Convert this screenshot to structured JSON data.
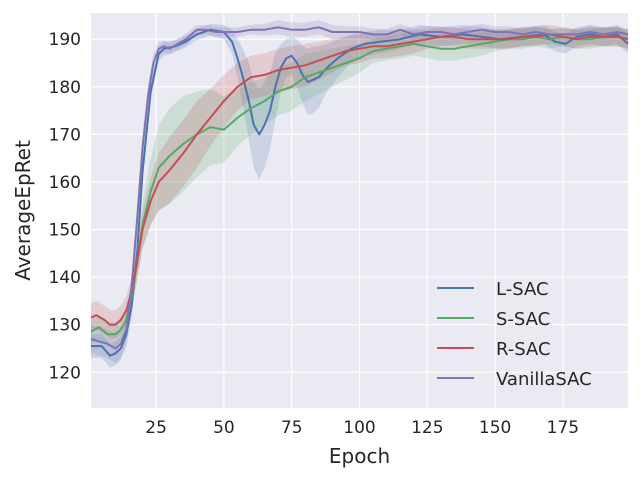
{
  "chart_data": {
    "type": "line",
    "title": "",
    "xlabel": "Epoch",
    "ylabel": "AverageEpRet",
    "xlim": [
      1,
      199
    ],
    "ylim": [
      112.5,
      195.5
    ],
    "xticks": [
      25,
      50,
      75,
      100,
      125,
      150,
      175
    ],
    "yticks": [
      120,
      130,
      140,
      150,
      160,
      170,
      180,
      190
    ],
    "grid": true,
    "legend_position": "lower-right",
    "background": "#eaeaf2",
    "series": [
      {
        "name": "L-SAC",
        "color": "#4c72b0",
        "x": [
          1,
          5,
          8,
          10,
          12,
          14,
          16,
          18,
          20,
          23,
          26,
          28,
          32,
          36,
          40,
          45,
          50,
          53,
          55,
          57,
          59,
          61,
          63,
          65,
          67,
          69,
          71,
          73,
          75,
          77,
          79,
          81,
          83,
          85,
          88,
          92,
          97,
          102,
          108,
          115,
          122,
          130,
          138,
          145,
          152,
          160,
          168,
          172,
          176,
          180,
          185,
          190,
          195,
          199
        ],
        "y": [
          125.5,
          125.5,
          123.5,
          124,
          125,
          128,
          134,
          145,
          162,
          179,
          187,
          188,
          188.5,
          189.5,
          191,
          192,
          191.5,
          189.5,
          186,
          182,
          177.5,
          172,
          170,
          172,
          175,
          180,
          184,
          186,
          186.5,
          185,
          182.5,
          181,
          181.5,
          182,
          184,
          186,
          188,
          189,
          189.5,
          190,
          191,
          190.5,
          191,
          190.5,
          190,
          190.5,
          191,
          189.5,
          189,
          190.5,
          191,
          190.5,
          191,
          189
        ],
        "band": [
          2.5,
          2.5,
          2.5,
          2.5,
          2.5,
          2.5,
          2.5,
          2.5,
          2,
          1.5,
          1.5,
          1.5,
          1.2,
          1.2,
          1.2,
          1.2,
          1.5,
          2.5,
          4,
          6,
          8,
          9,
          9.5,
          9,
          8,
          7,
          5,
          4,
          4,
          5,
          6,
          7,
          7,
          6.5,
          5,
          4,
          3,
          2.5,
          2.5,
          2,
          2,
          2,
          2,
          2,
          2,
          2,
          2,
          2,
          2,
          2,
          2,
          2,
          2,
          2
        ]
      },
      {
        "name": "S-SAC",
        "color": "#55a868",
        "x": [
          1,
          4,
          7,
          10,
          12,
          14,
          16,
          18,
          20,
          23,
          26,
          30,
          35,
          40,
          45,
          50,
          55,
          60,
          65,
          70,
          75,
          80,
          85,
          90,
          95,
          100,
          105,
          110,
          115,
          120,
          125,
          130,
          135,
          140,
          145,
          150,
          155,
          160,
          165,
          170,
          175,
          180,
          185,
          190,
          195,
          199
        ],
        "y": [
          128.5,
          129.5,
          128,
          128,
          129,
          131,
          136,
          143,
          151,
          158,
          163,
          165.5,
          168,
          170,
          171.5,
          171,
          173.5,
          175.5,
          177,
          179,
          180,
          182,
          183,
          184,
          185,
          186,
          187.5,
          188,
          188.5,
          189,
          188.5,
          188,
          188,
          188.5,
          189,
          189.5,
          190,
          190,
          190.5,
          190,
          190.5,
          190,
          190,
          190.5,
          190.5,
          190
        ],
        "band": [
          2.5,
          2.5,
          2.5,
          2.5,
          2.5,
          2.5,
          3,
          4,
          5,
          7,
          9,
          10,
          10,
          9,
          8,
          7,
          6,
          5.5,
          5,
          5,
          5,
          5,
          4.5,
          4,
          3.5,
          3,
          2.5,
          2.5,
          2.5,
          2.5,
          2.5,
          2.5,
          2.5,
          2.5,
          2.5,
          2,
          2,
          2,
          2,
          2,
          2,
          2,
          2,
          2,
          2,
          2
        ]
      },
      {
        "name": "R-SAC",
        "color": "#c44e52",
        "x": [
          1,
          3,
          6,
          8,
          10,
          12,
          14,
          16,
          18,
          20,
          23,
          26,
          30,
          35,
          40,
          45,
          50,
          55,
          60,
          65,
          70,
          75,
          80,
          85,
          90,
          95,
          100,
          105,
          110,
          115,
          120,
          125,
          130,
          135,
          140,
          145,
          150,
          155,
          160,
          165,
          170,
          175,
          180,
          185,
          190,
          195,
          199
        ],
        "y": [
          131.5,
          132,
          131,
          130,
          130,
          131,
          133,
          137,
          143,
          150,
          156,
          160,
          162.5,
          166,
          170,
          173.5,
          177,
          180,
          182,
          182.5,
          183.5,
          184,
          184.5,
          185.5,
          186.5,
          187.5,
          188,
          188.5,
          188.5,
          189,
          189.5,
          190,
          190.5,
          190.5,
          190,
          190,
          190,
          190,
          190.5,
          190.5,
          191,
          190.5,
          190,
          190.5,
          190.5,
          190.5,
          190
        ],
        "band": [
          3,
          3,
          3,
          3,
          3,
          3,
          3,
          3,
          3.5,
          4,
          5,
          6,
          7,
          7,
          7,
          6,
          5.5,
          5,
          4.5,
          4.5,
          4.5,
          4.5,
          4.5,
          4,
          3.5,
          3,
          3,
          2.5,
          2.5,
          2.5,
          2.5,
          2,
          2,
          2,
          2,
          2,
          2,
          2,
          2,
          2,
          2,
          2,
          2,
          2,
          2,
          2,
          2
        ]
      },
      {
        "name": "VanillaSAC",
        "color": "#8172b2",
        "x": [
          1,
          4,
          7,
          10,
          12,
          14,
          16,
          18,
          20,
          22,
          24,
          26,
          28,
          30,
          33,
          36,
          40,
          43,
          47,
          50,
          55,
          60,
          65,
          70,
          75,
          80,
          85,
          90,
          95,
          100,
          105,
          110,
          115,
          120,
          125,
          130,
          135,
          140,
          145,
          150,
          155,
          160,
          165,
          170,
          175,
          180,
          185,
          190,
          195,
          199
        ],
        "y": [
          127,
          126.5,
          126,
          125,
          126,
          129,
          138,
          152,
          167,
          178,
          185,
          188,
          188.5,
          188,
          189,
          190,
          192,
          192,
          191.5,
          191.5,
          191.5,
          192,
          192,
          192.5,
          192,
          192,
          192.5,
          191.5,
          191.5,
          191.5,
          191,
          191,
          192,
          191,
          191.5,
          191.5,
          191,
          191.5,
          192,
          191.5,
          191.5,
          191,
          191.5,
          191,
          191,
          191,
          191.5,
          191,
          191.5,
          191
        ],
        "band": [
          3,
          3,
          3,
          3,
          3,
          3,
          3,
          3,
          3,
          2.5,
          2,
          1.5,
          1.2,
          1.2,
          1.2,
          1.2,
          1,
          1,
          1,
          1,
          1,
          1,
          1.2,
          1.5,
          1.5,
          1.5,
          1.5,
          1.5,
          1.2,
          1.2,
          1.2,
          1.2,
          1.2,
          1.2,
          1.2,
          1.2,
          1.2,
          1.2,
          1.2,
          1.2,
          1.2,
          1.2,
          1.2,
          1.2,
          1.2,
          1.2,
          1.2,
          1.2,
          1.2,
          1.2
        ]
      }
    ]
  }
}
